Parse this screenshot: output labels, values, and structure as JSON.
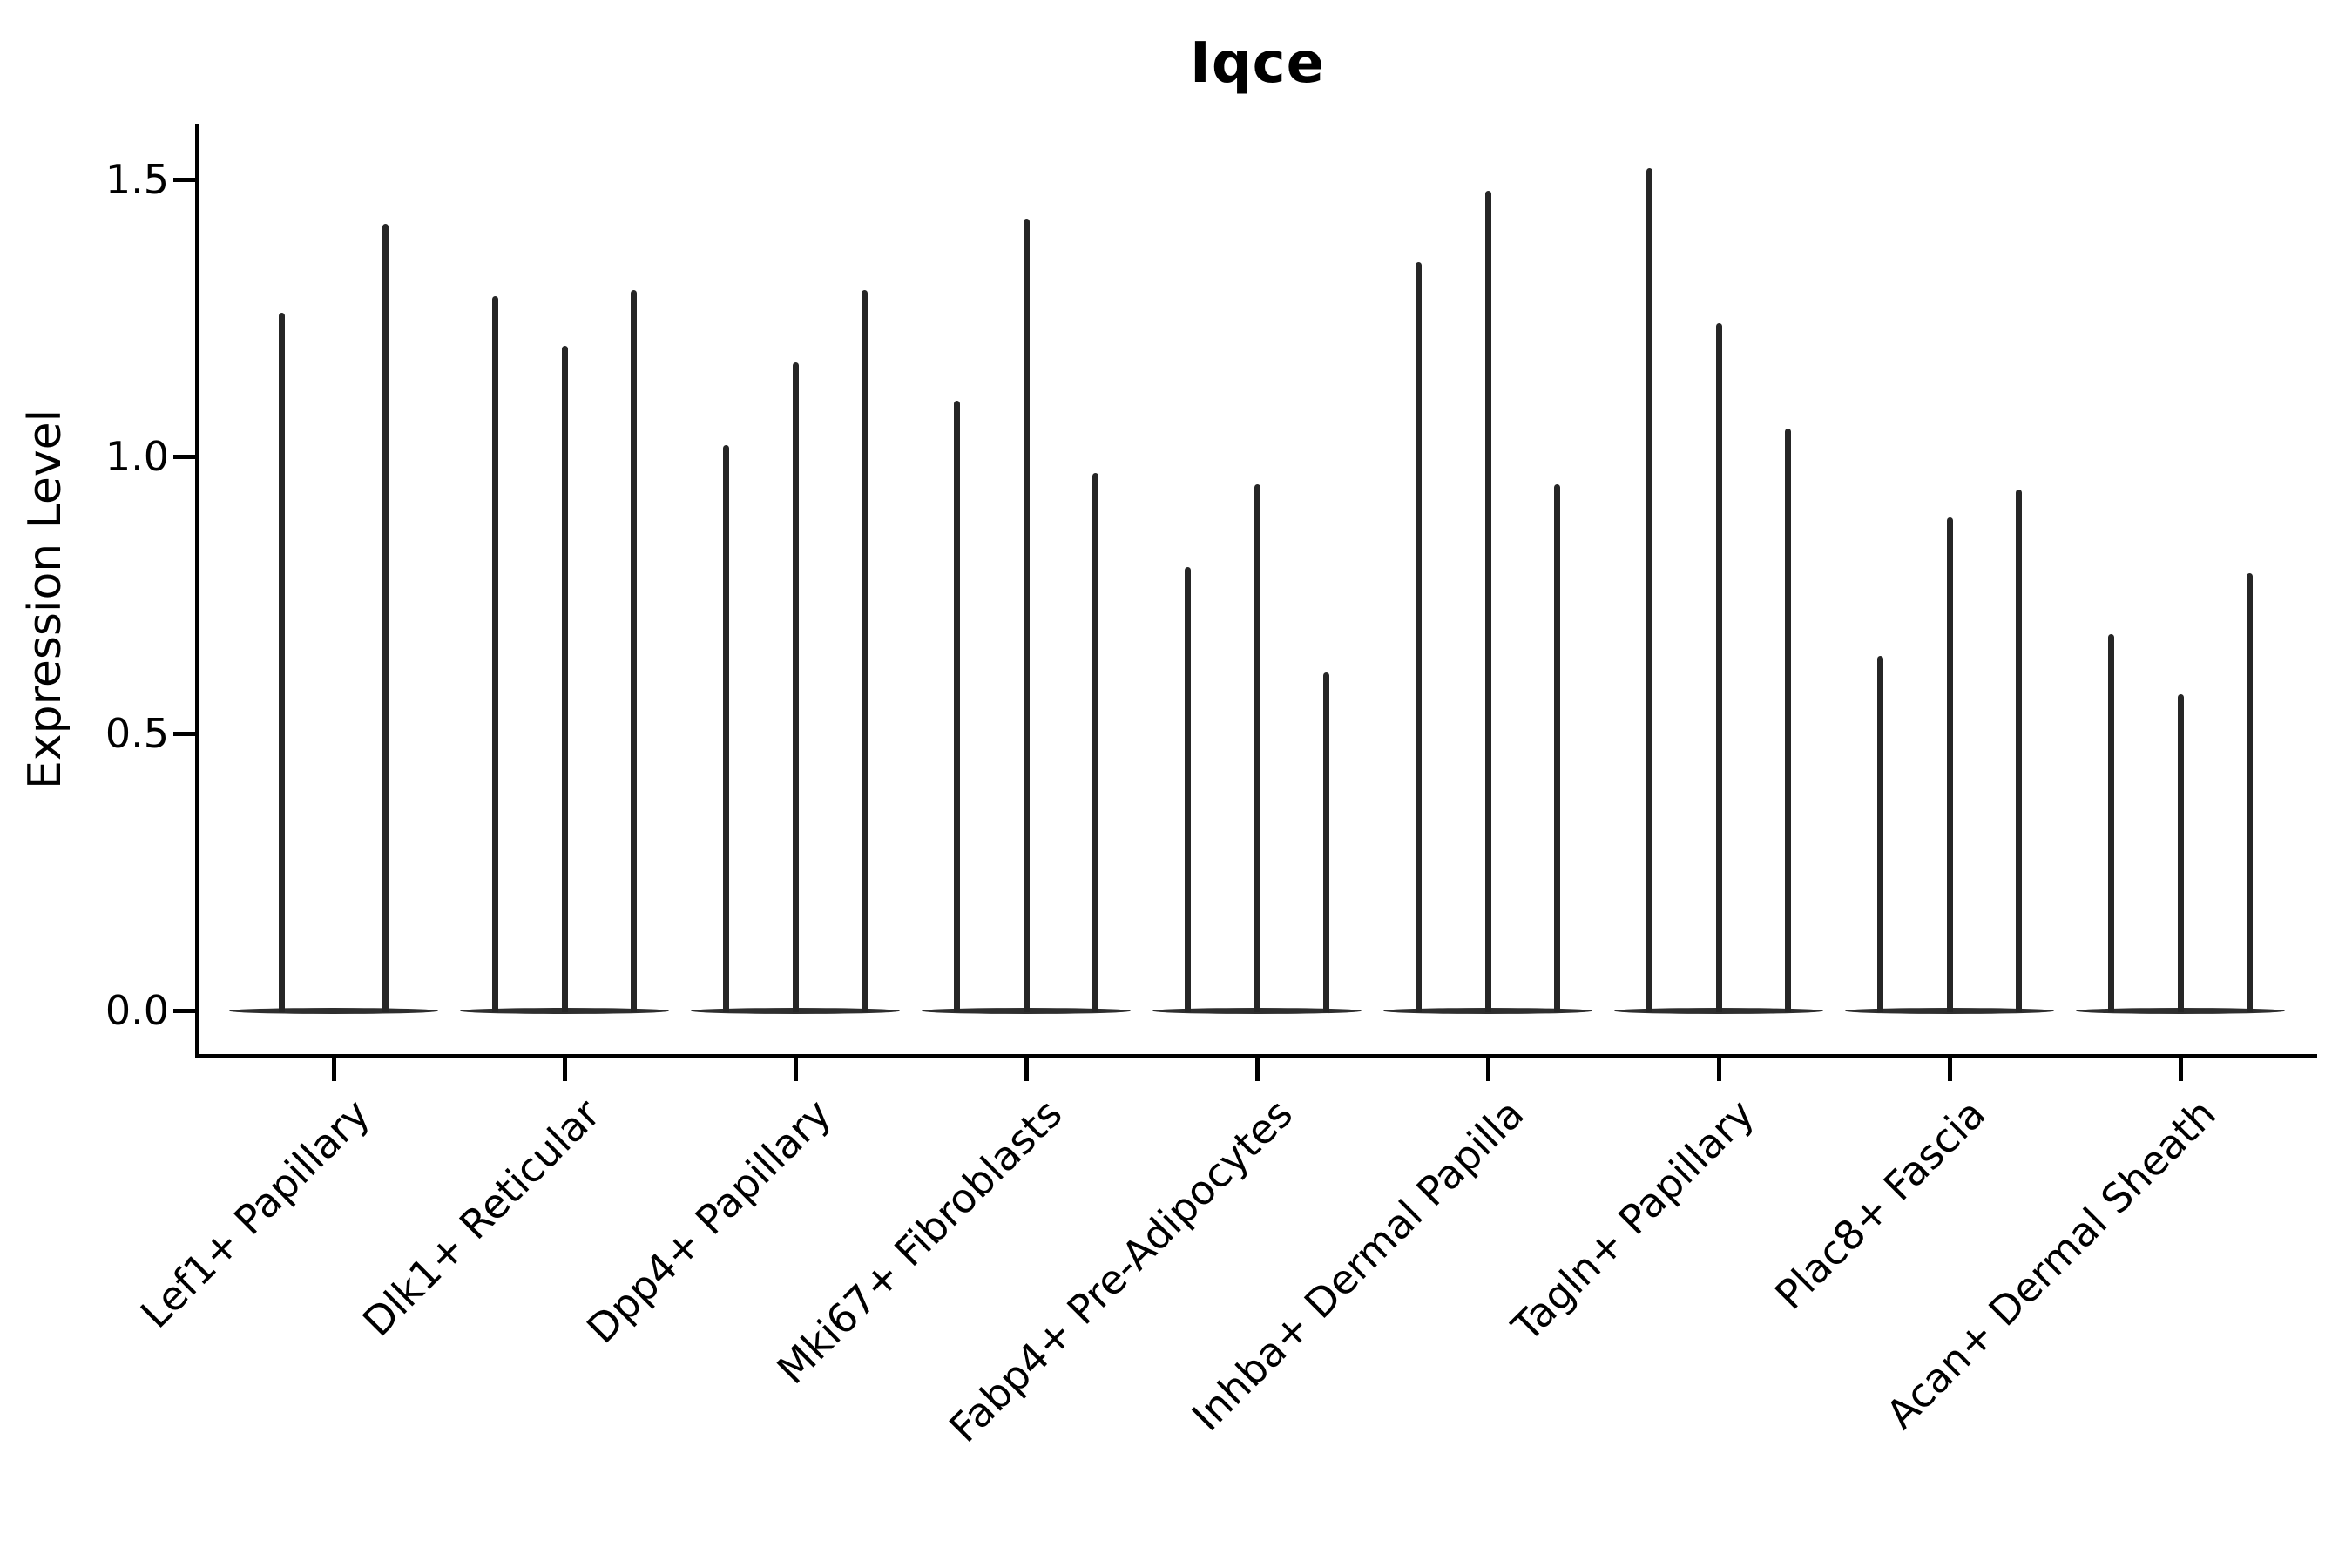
{
  "title": "Iqce",
  "axes": {
    "ylabel": "Expression Level",
    "ytick_labels": [
      "0.0",
      "0.5",
      "1.0",
      "1.5"
    ]
  },
  "colors": {
    "background": "#ffffff",
    "violin": "#262626",
    "axis": "#000000",
    "text": "#000000"
  },
  "chart_data": {
    "type": "violin",
    "title": "Iqce",
    "xlabel": "",
    "ylabel": "Expression Level",
    "ylim": [
      -0.08,
      1.6
    ],
    "yticks": [
      0.0,
      0.5,
      1.0,
      1.5
    ],
    "grid": false,
    "legend_position": "none",
    "x_tick_rotation_deg": 45,
    "violin_style": "near-zero-width spikes; density concentrated at 0 with wide flat base and a thin spike rising to the maximum expression value",
    "categories": [
      "Lef1+ Papillary",
      "Dlk1+ Reticular",
      "Dpp4+ Papillary",
      "Mki67+ Fibroblasts",
      "Fabp4+ Pre-Adipocytes",
      "Inhba+ Dermal Papilla",
      "Tagln+ Papillary",
      "Plac8+ Fascia",
      "Acan+ Dermal Sheath"
    ],
    "series": [
      {
        "category": "Lef1+ Papillary",
        "violin_peaks": [
          1.26,
          1.42
        ]
      },
      {
        "category": "Dlk1+ Reticular",
        "violin_peaks": [
          1.29,
          1.2,
          1.3
        ]
      },
      {
        "category": "Dpp4+ Papillary",
        "violin_peaks": [
          1.02,
          1.17,
          1.3
        ]
      },
      {
        "category": "Mki67+ Fibroblasts",
        "violin_peaks": [
          1.1,
          1.43,
          0.97
        ]
      },
      {
        "category": "Fabp4+ Pre-Adipocytes",
        "violin_peaks": [
          0.8,
          0.95,
          0.61
        ]
      },
      {
        "category": "Inhba+ Dermal Papilla",
        "violin_peaks": [
          1.35,
          1.48,
          0.95
        ]
      },
      {
        "category": "Tagln+ Papillary",
        "violin_peaks": [
          1.52,
          1.24,
          1.05
        ]
      },
      {
        "category": "Plac8+ Fascia",
        "violin_peaks": [
          0.64,
          0.89,
          0.94
        ]
      },
      {
        "category": "Acan+ Dermal Sheath",
        "violin_peaks": [
          0.68,
          0.57,
          0.79
        ]
      }
    ]
  }
}
